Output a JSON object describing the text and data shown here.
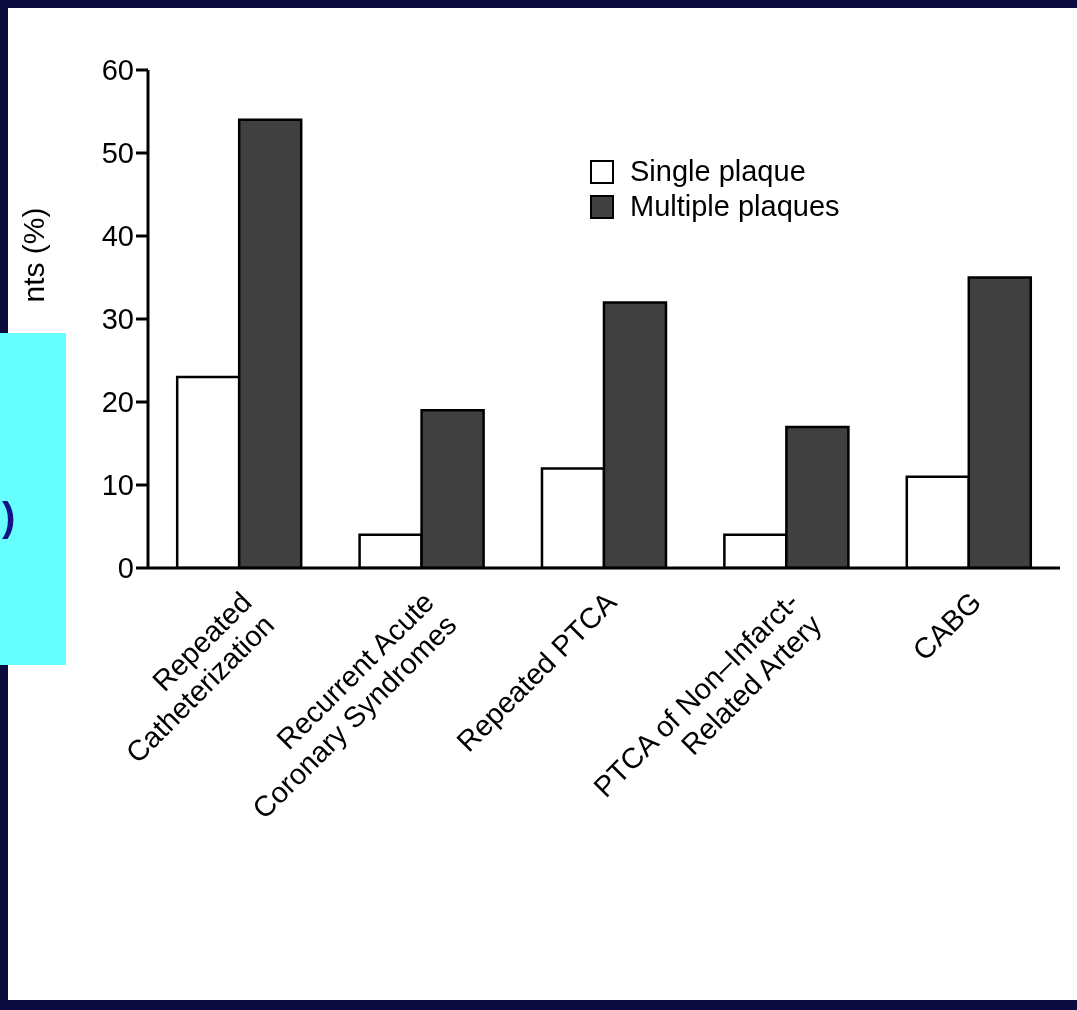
{
  "chart_data": {
    "type": "bar",
    "ylabel": "nts (%)",
    "categories": [
      "Repeated\nCatheterization",
      "Recurrent Acute\nCoronary Syndromes",
      "Repeated PTCA",
      "PTCA of Non–Infarct-\nRelated Artery",
      "CABG"
    ],
    "series": [
      {
        "name": "Single plaque",
        "color": "#ffffff",
        "values": [
          23,
          4,
          12,
          4,
          11
        ]
      },
      {
        "name": "Multiple plaques",
        "color": "#404040",
        "values": [
          54,
          19,
          32,
          17,
          35
        ]
      }
    ],
    "ylim": [
      0,
      60
    ],
    "yticks": [
      0,
      10,
      20,
      30,
      40,
      50,
      60
    ],
    "grid": false,
    "legend": "top right",
    "annotations": [
      ")"
    ]
  }
}
